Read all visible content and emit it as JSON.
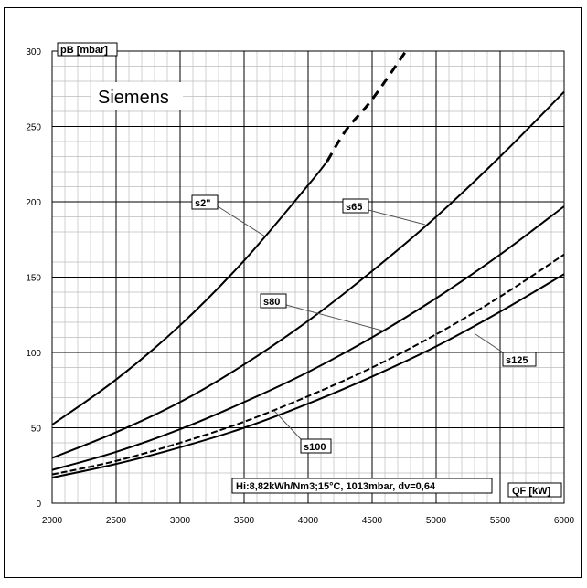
{
  "chart_data": {
    "type": "line",
    "title": "",
    "ylabel": "pB [mbar]",
    "xlabel": "QF [kW]",
    "brand": "Siemens",
    "footnote": "Hi:8,82kWh/Nm3;15°C,  1013mbar, dv=0,64",
    "xlim": [
      2000,
      6000
    ],
    "ylim": [
      0,
      300
    ],
    "x_ticks": [
      2000,
      2500,
      3000,
      3500,
      4000,
      4500,
      5000,
      5500,
      6000
    ],
    "y_ticks": [
      0,
      50,
      100,
      150,
      200,
      250,
      300
    ],
    "grid": true,
    "series": [
      {
        "name": "s2\"",
        "x": [
          2000,
          2500,
          3000,
          3500,
          4000,
          4150
        ],
        "y": [
          52,
          82,
          118,
          161,
          211,
          227
        ]
      },
      {
        "name": "s2\" extrapolated",
        "style": "dashed",
        "x": [
          4150,
          4300,
          4500,
          4780
        ],
        "y": [
          227,
          248,
          268,
          302
        ]
      },
      {
        "name": "s65",
        "x": [
          2000,
          2500,
          3000,
          3500,
          4000,
          4500,
          5000,
          5500,
          6000
        ],
        "y": [
          30,
          47,
          67,
          92,
          121,
          154,
          190,
          230,
          273
        ]
      },
      {
        "name": "s80",
        "x": [
          2000,
          2500,
          3000,
          3500,
          4000,
          4500,
          5000,
          5500,
          6000
        ],
        "y": [
          22,
          34,
          49,
          67,
          87,
          110,
          136,
          165,
          197
        ]
      },
      {
        "name": "s100",
        "style": "dashed",
        "x": [
          2000,
          2500,
          3000,
          3500,
          4000,
          4500,
          5000,
          5500,
          6000
        ],
        "y": [
          19,
          28,
          40,
          54,
          71,
          90,
          112,
          137,
          165
        ]
      },
      {
        "name": "s125",
        "x": [
          2000,
          2500,
          3000,
          3500,
          4000,
          4500,
          5000,
          5500,
          6000
        ],
        "y": [
          17,
          26,
          37,
          50,
          66,
          84,
          104,
          127,
          152
        ]
      }
    ],
    "annotations": [
      {
        "text": "s2\"",
        "series": "s2\""
      },
      {
        "text": "s65",
        "series": "s65"
      },
      {
        "text": "s80",
        "series": "s80"
      },
      {
        "text": "s100",
        "series": "s100"
      },
      {
        "text": "s125",
        "series": "s125"
      }
    ]
  }
}
